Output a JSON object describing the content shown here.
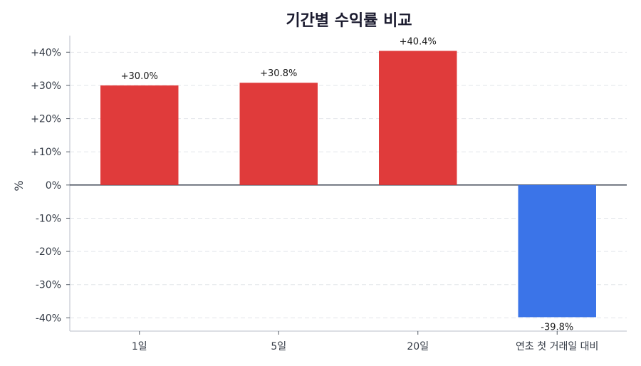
{
  "chart_data": {
    "type": "bar",
    "title": "기간별 수익률 비교",
    "ylabel": "%",
    "xlabel": "",
    "categories": [
      "1일",
      "5일",
      "20일",
      "연초 첫 거래일 대비"
    ],
    "values": [
      30.0,
      30.8,
      40.4,
      -39.8
    ],
    "data_labels": [
      "+30.0%",
      "+30.8%",
      "+40.4%",
      "-39.8%"
    ],
    "yticks": [
      40,
      30,
      20,
      10,
      0,
      -10,
      -20,
      -30,
      -40
    ],
    "ytick_labels": [
      "+40%",
      "+30%",
      "+20%",
      "+10%",
      "0%",
      "-10%",
      "-20%",
      "-30%",
      "-40%"
    ],
    "ylim": [
      -44,
      45
    ],
    "grid": true,
    "colors": {
      "positive": "#e03b3b",
      "negative": "#3b74e8",
      "grid": "#e2e5ea",
      "zero_line": "#2c3444"
    }
  }
}
